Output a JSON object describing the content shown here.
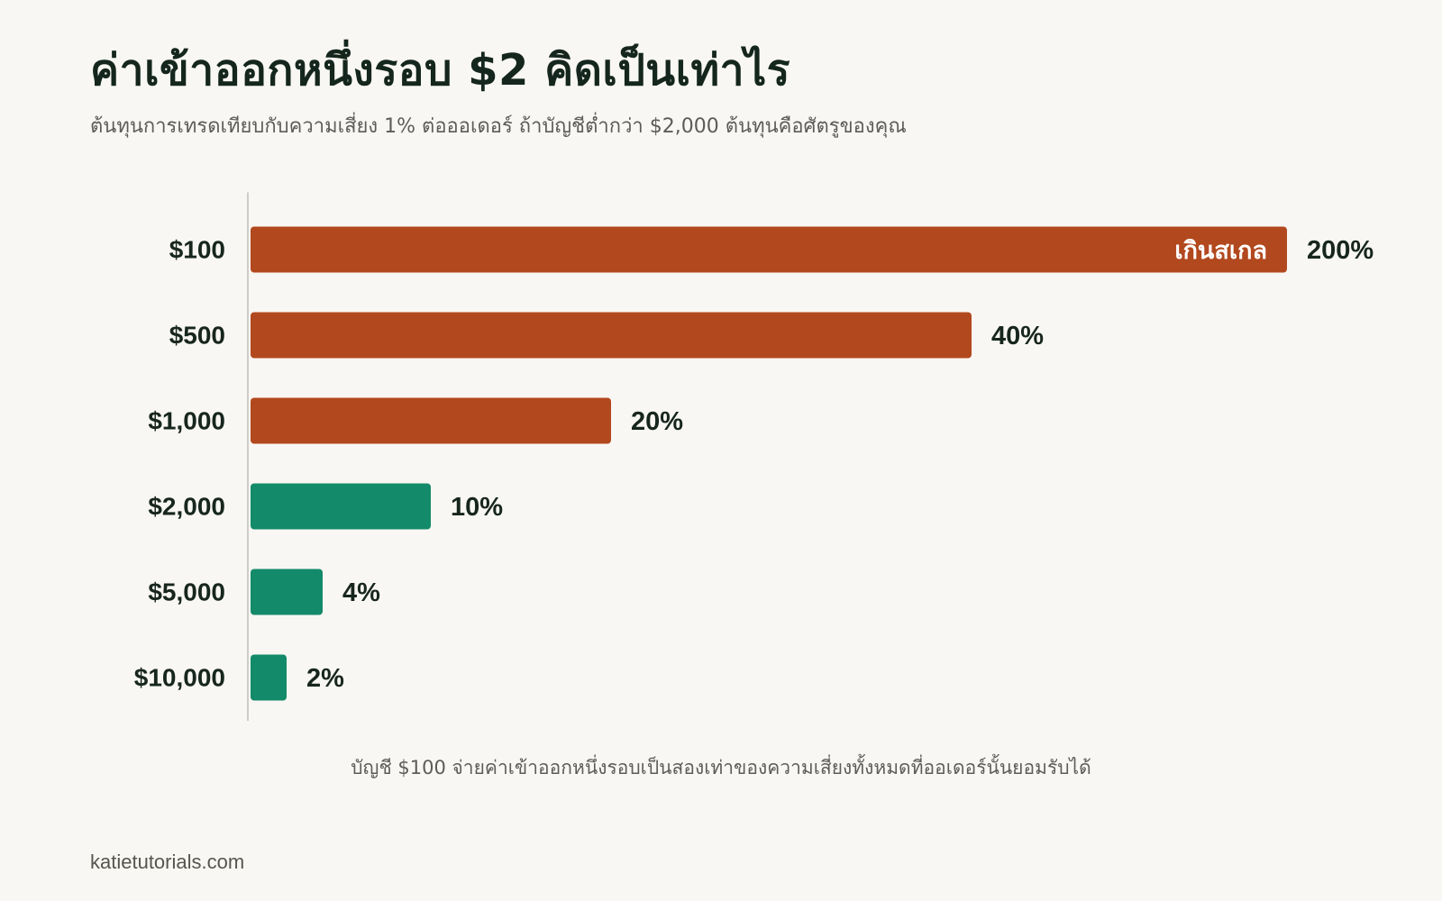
{
  "title": "ค่าเข้าออกหนึ่งรอบ $2 คิดเป็นเท่าไร",
  "subtitle": "ต้นทุนการเทรดเทียบกับความเสี่ยง 1% ต่อออเดอร์ ถ้าบัญชีต่ำกว่า $2,000 ต้นทุนคือศัตรูของคุณ",
  "caption": "บัญชี $100 จ่ายค่าเข้าออกหนึ่งรอบเป็นสองเท่าของความเสี่ยงทั้งหมดที่ออเดอร์นั้นยอมรับได้",
  "footer": "katietutorials.com",
  "colors": {
    "high_cost": "#b2481e",
    "low_cost": "#138a69",
    "background": "#f9f7f3",
    "axis": "#cfcdc8"
  },
  "chart_data": {
    "type": "bar",
    "orientation": "horizontal",
    "categories": [
      "$100",
      "$500",
      "$1,000",
      "$2,000",
      "$5,000",
      "$10,000"
    ],
    "values": [
      200,
      40,
      20,
      10,
      4,
      2
    ],
    "value_labels": [
      "200%",
      "40%",
      "20%",
      "10%",
      "4%",
      "2%"
    ],
    "bar_colors": [
      "#b2481e",
      "#b2481e",
      "#b2481e",
      "#138a69",
      "#138a69",
      "#138a69"
    ],
    "annotations": [
      {
        "category": "$100",
        "text": "เกินสเกล"
      }
    ],
    "xlim": [
      0,
      48
    ],
    "grid": false,
    "title": "ค่าเข้าออกหนึ่งรอบ $2 คิดเป็นเท่าไร",
    "xlabel": "",
    "ylabel": ""
  }
}
